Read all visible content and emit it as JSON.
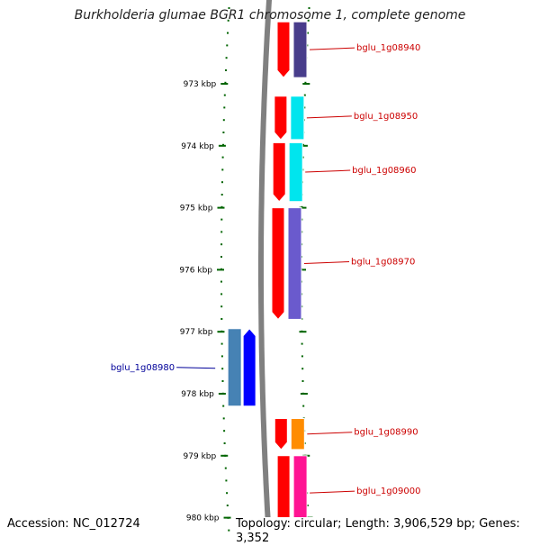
{
  "title": "Burkholderia glumae BGR1 chromosome 1, complete genome",
  "footer": {
    "accession": "Accession: NC_012724",
    "topology": "Topology: circular; Length: 3,906,529 bp; Genes: 3,352"
  },
  "scale": {
    "ticks": [
      {
        "label": "973 kbp",
        "kbp": 973
      },
      {
        "label": "974 kbp",
        "kbp": 974
      },
      {
        "label": "975 kbp",
        "kbp": 975
      },
      {
        "label": "976 kbp",
        "kbp": 976
      },
      {
        "label": "977 kbp",
        "kbp": 977
      },
      {
        "label": "978 kbp",
        "kbp": 978
      },
      {
        "label": "979 kbp",
        "kbp": 979
      },
      {
        "label": "980 kbp",
        "kbp": 980
      }
    ]
  },
  "gene_labels": [
    {
      "id": "bglu_1g08940",
      "strand": "forward",
      "color": "#cc0000",
      "start_kbp": 972.0,
      "end_kbp": 972.9
    },
    {
      "id": "bglu_1g08950",
      "strand": "forward",
      "color": "#cc0000",
      "start_kbp": 973.2,
      "end_kbp": 973.9
    },
    {
      "id": "bglu_1g08960",
      "strand": "forward",
      "color": "#cc0000",
      "start_kbp": 973.95,
      "end_kbp": 974.9
    },
    {
      "id": "bglu_1g08970",
      "strand": "forward",
      "color": "#cc0000",
      "start_kbp": 975.0,
      "end_kbp": 976.8
    },
    {
      "id": "bglu_1g08980",
      "strand": "reverse",
      "color": "#000099",
      "start_kbp": 976.95,
      "end_kbp": 978.2
    },
    {
      "id": "bglu_1g08990",
      "strand": "forward",
      "color": "#cc0000",
      "start_kbp": 978.4,
      "end_kbp": 978.9
    },
    {
      "id": "bglu_1g09000",
      "strand": "forward",
      "color": "#cc0000",
      "start_kbp": 979.0,
      "end_kbp": 980.2
    }
  ],
  "cog_colors": {
    "bglu_1g08940": "#483d8b",
    "bglu_1g08950": "#00e5ee",
    "bglu_1g08960": "#00e5ee",
    "bglu_1g08970": "#6a5acd",
    "bglu_1g08980": "#4682b4",
    "bglu_1g08990": "#ff8c00",
    "bglu_1g09000": "#ff1493"
  },
  "colors": {
    "forward_cds": "#ff0000",
    "reverse_cds": "#0000ff",
    "backbone": "#808080",
    "tick": "#006400"
  }
}
